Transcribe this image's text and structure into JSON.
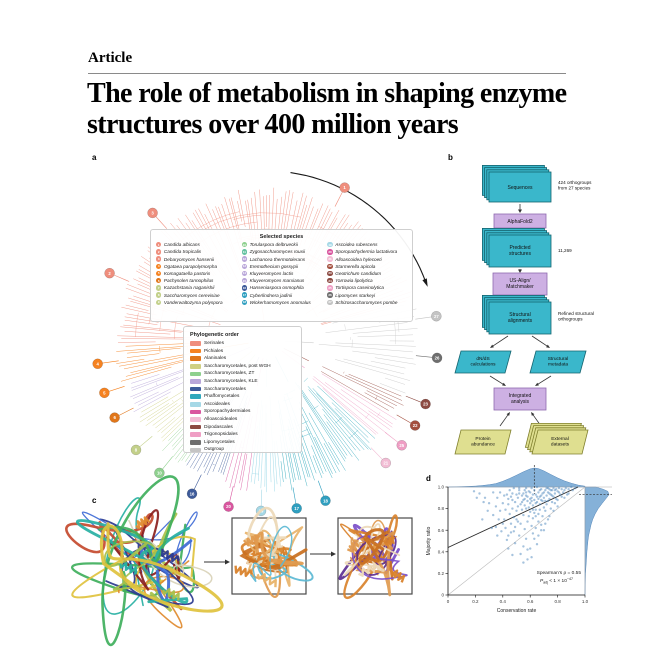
{
  "article": {
    "kicker": "Article",
    "title": "The role of metabolism in shaping enzyme structures over 400 million years"
  },
  "figure": {
    "panels": {
      "a": "a",
      "b": "b",
      "c": "c",
      "d": "d"
    }
  },
  "selected_species": {
    "title": "Selected species",
    "items": [
      {
        "num": "1",
        "name": "Candida albicans",
        "color": "#ef8e7d"
      },
      {
        "num": "2",
        "name": "Candida tropicalis",
        "color": "#ef8e7d"
      },
      {
        "num": "3",
        "name": "Debaryomyces hansenii",
        "color": "#ef8e7d"
      },
      {
        "num": "4",
        "name": "Ogataea parapolymorpha",
        "color": "#f58220"
      },
      {
        "num": "5",
        "name": "Komagataella pastoris",
        "color": "#f58220"
      },
      {
        "num": "6",
        "name": "Pachysolen tannophilus",
        "color": "#e0761a"
      },
      {
        "num": "7",
        "name": "Kazachstania naganishii",
        "color": "#c3d08a"
      },
      {
        "num": "8",
        "name": "Saccharomyces cerevisiae",
        "color": "#c3d08a"
      },
      {
        "num": "9",
        "name": "Vanderwaltozyma polyspora",
        "color": "#c3d08a"
      },
      {
        "num": "10",
        "name": "Torulaspora delbrueckii",
        "color": "#8ed08e"
      },
      {
        "num": "11",
        "name": "Zygosaccharomyces rouxii",
        "color": "#63c1a0"
      },
      {
        "num": "12",
        "name": "Lachancea thermotolerans",
        "color": "#b9a6d9"
      },
      {
        "num": "13",
        "name": "Eremothecium gossypii",
        "color": "#b9a6d9"
      },
      {
        "num": "14",
        "name": "Kluyveromyces lactis",
        "color": "#b9a6d9"
      },
      {
        "num": "15",
        "name": "Kluyveromyces marxianus",
        "color": "#b9a6d9"
      },
      {
        "num": "16",
        "name": "Hanseniaspora osmophila",
        "color": "#3d5a99"
      },
      {
        "num": "17",
        "name": "Cyberlindnera jadinii",
        "color": "#2f9fc0"
      },
      {
        "num": "18",
        "name": "Wickerhamomyces anomalus",
        "color": "#2f9fc0"
      },
      {
        "num": "19",
        "name": "Ascoidea rubescens",
        "color": "#a5d8e6"
      },
      {
        "num": "20",
        "name": "Sporopachydermia lactativora",
        "color": "#d9569f"
      },
      {
        "num": "21",
        "name": "Alloascoidea hylecoeti",
        "color": "#f2bcd4"
      },
      {
        "num": "22",
        "name": "Starmerella apicola",
        "color": "#a34f3e"
      },
      {
        "num": "23",
        "name": "Geotrichum candidum",
        "color": "#8c4a42"
      },
      {
        "num": "24",
        "name": "Yarrowia lipolytica",
        "color": "#8c4a42"
      },
      {
        "num": "25",
        "name": "Tortispora caseinolytica",
        "color": "#ef9ec4"
      },
      {
        "num": "26",
        "name": "Lipomyces starkeyi",
        "color": "#6e6e6e"
      },
      {
        "num": "27",
        "name": "Schizosaccharomyces pombe",
        "color": "#c4c4c4"
      }
    ]
  },
  "phylo_orders": {
    "title": "Phylogenetic order",
    "items": [
      {
        "label": "Serinales",
        "color": "#ef8e7d"
      },
      {
        "label": "Pichiales",
        "color": "#f58220"
      },
      {
        "label": "Alaninales",
        "color": "#e0761a"
      },
      {
        "label": "Saccharomycetales, post WGH",
        "color": "#cfd083"
      },
      {
        "label": "Saccharomycetales, ZT",
        "color": "#8ed08e"
      },
      {
        "label": "Saccharomycetales, KLE",
        "color": "#b9a6d9"
      },
      {
        "label": "Saccharomycetales",
        "color": "#3d5a99"
      },
      {
        "label": "Phaffomycetales",
        "color": "#2fa8bc"
      },
      {
        "label": "Ascoideales",
        "color": "#a5d8e6"
      },
      {
        "label": "Sporopachydermiales",
        "color": "#d9569f"
      },
      {
        "label": "Alloascoideales",
        "color": "#f2bcd4"
      },
      {
        "label": "Dipodascales",
        "color": "#8c4a42"
      },
      {
        "label": "Trigonopsidales",
        "color": "#ef9ec4"
      },
      {
        "label": "Lipomycetales",
        "color": "#6e6e6e"
      },
      {
        "label": "Outgroup",
        "color": "#c4c4c4"
      }
    ]
  },
  "tree": {
    "sectors": [
      {
        "start": 268,
        "end": 435,
        "color": "#ef8e7d",
        "n": 110
      },
      {
        "start": 75,
        "end": 112,
        "color": "#c9c9c9",
        "n": 16
      },
      {
        "start": 112,
        "end": 121,
        "color": "#9c544a",
        "n": 6
      },
      {
        "start": 121,
        "end": 132,
        "color": "#ef9ec4",
        "n": 7
      },
      {
        "start": 132,
        "end": 174,
        "color": "#2fa8bc",
        "n": 34
      },
      {
        "start": 174,
        "end": 187,
        "color": "#8fd4e4",
        "n": 10
      },
      {
        "start": 187,
        "end": 197,
        "color": "#d9569f",
        "n": 6
      },
      {
        "start": 197,
        "end": 213,
        "color": "#4a66a0",
        "n": 11
      },
      {
        "start": 213,
        "end": 225,
        "color": "#8ed08e",
        "n": 9
      },
      {
        "start": 225,
        "end": 241,
        "color": "#cfd083",
        "n": 11
      },
      {
        "start": 241,
        "end": 253,
        "color": "#b9a6d9",
        "n": 8
      },
      {
        "start": 253,
        "end": 268,
        "color": "#f58220",
        "n": 10
      }
    ],
    "tips": [
      {
        "num": "1",
        "angle": 27,
        "color": "#ef8e7d"
      },
      {
        "num": "2",
        "angle": 293,
        "color": "#ef8e7d"
      },
      {
        "num": "3",
        "angle": 318,
        "color": "#ef8e7d"
      },
      {
        "num": "4",
        "angle": 262,
        "color": "#f58220"
      },
      {
        "num": "5",
        "angle": 252,
        "color": "#f58220"
      },
      {
        "num": "6",
        "angle": 243,
        "color": "#e0761a"
      },
      {
        "num": "8",
        "angle": 230,
        "color": "#c3d08a"
      },
      {
        "num": "10",
        "angle": 219,
        "color": "#8ed08e"
      },
      {
        "num": "16",
        "angle": 206,
        "color": "#3d5a99"
      },
      {
        "num": "20",
        "angle": 193,
        "color": "#d9569f"
      },
      {
        "num": "19",
        "angle": 182,
        "color": "#a5d8e6"
      },
      {
        "num": "17",
        "angle": 170,
        "color": "#2f9fc0"
      },
      {
        "num": "18",
        "angle": 160,
        "color": "#2f9fc0"
      },
      {
        "num": "21",
        "angle": 136,
        "color": "#f2bcd4"
      },
      {
        "num": "25",
        "angle": 128,
        "color": "#ef9ec4"
      },
      {
        "num": "22",
        "angle": 120,
        "color": "#a34f3e"
      },
      {
        "num": "23",
        "angle": 112,
        "color": "#8c4a42"
      },
      {
        "num": "26",
        "angle": 96,
        "color": "#6e6e6e"
      },
      {
        "num": "27",
        "angle": 82,
        "color": "#c4c4c4"
      }
    ]
  },
  "workflow": {
    "sequences": "Sequences",
    "sequences_note": "424 orthogroups\nfrom 27 species",
    "alphafold": "AlphaFold2",
    "predicted": "Predicted\nstructures",
    "predicted_note": "11,269",
    "usalign": "US-Align/\nMatchmaker",
    "alignments": "Structural\nalignments",
    "alignments_note": "Refined structural\northogroups",
    "dnds": "dN/dS\ncalculations",
    "metadata": "Structural\nmetadata",
    "integrated": "Integrated\nanalysis",
    "abundance": "Protein\nabundance",
    "external": "External\ndatasets",
    "colors": {
      "teal": "#3ab7cb",
      "teal_stroke": "#14646f",
      "purple": "#cdb0e3",
      "purple_stroke": "#8e6ab0",
      "yellow": "#dfdf90",
      "yellow_stroke": "#80802e",
      "arrow": "#333333"
    }
  },
  "proteins": {
    "left_palette": [
      "#2b3a8f",
      "#3f6bd6",
      "#27b0a3",
      "#3faf5c",
      "#a8c04a",
      "#e0c23e",
      "#e08a2e",
      "#c44a2e",
      "#8a1f1f",
      "#d9d2b8"
    ],
    "mid_palette": [
      "#d9822b",
      "#c96f1e",
      "#e8b36a",
      "#edd9b8",
      "#e09a4f",
      "#5bb8d4"
    ],
    "right_palette": [
      "#d9822b",
      "#5b2d91",
      "#e09a4f",
      "#7b4fc9",
      "#edd9b8",
      "#c96f1e"
    ]
  },
  "chart_data": {
    "type": "scatter",
    "title": "",
    "xlabel": "Conservation rate",
    "ylabel": "Majority ratio",
    "xlim": [
      0,
      1
    ],
    "ylim": [
      0,
      1
    ],
    "xtick_labels": [
      "0",
      "0.2",
      "0.4",
      "0.6",
      "0.8",
      "1.0"
    ],
    "ytick_labels": [
      "0",
      "0.2",
      "0.4",
      "0.6",
      "0.8",
      "1.0"
    ],
    "grid": false,
    "legend_position": "none",
    "point_color": "#4d88bd",
    "density_fill": "#7fadd6",
    "density_stroke": "#4a7fb5",
    "annotation": {
      "spearman": "Spearman’s ρ = 0.55",
      "p_italic": "P",
      "p_sub": "adj",
      "p_rest": " < 1 × 10",
      "p_exp": "−47"
    },
    "regression": {
      "x0": 0,
      "y0": 0.44,
      "x1": 0.949,
      "y1": 1.0
    },
    "identity_line": true,
    "dashed_x": 0.63,
    "dashed_y": 0.93,
    "points": [
      [
        0.42,
        0.62
      ],
      [
        0.45,
        0.75
      ],
      [
        0.47,
        0.88
      ],
      [
        0.48,
        0.59
      ],
      [
        0.5,
        0.93
      ],
      [
        0.5,
        0.7
      ],
      [
        0.51,
        0.82
      ],
      [
        0.52,
        0.97
      ],
      [
        0.53,
        0.66
      ],
      [
        0.54,
        0.86
      ],
      [
        0.55,
        0.94
      ],
      [
        0.55,
        0.74
      ],
      [
        0.56,
        0.89
      ],
      [
        0.57,
        0.99
      ],
      [
        0.57,
        0.8
      ],
      [
        0.58,
        0.91
      ],
      [
        0.58,
        0.68
      ],
      [
        0.59,
        0.96
      ],
      [
        0.6,
        0.85
      ],
      [
        0.6,
        0.77
      ],
      [
        0.61,
        0.99
      ],
      [
        0.61,
        0.9
      ],
      [
        0.62,
        0.83
      ],
      [
        0.62,
        0.71
      ],
      [
        0.63,
        0.97
      ],
      [
        0.63,
        0.88
      ],
      [
        0.64,
        0.93
      ],
      [
        0.64,
        0.79
      ],
      [
        0.65,
        1.0
      ],
      [
        0.65,
        0.86
      ],
      [
        0.66,
        0.95
      ],
      [
        0.66,
        0.75
      ],
      [
        0.67,
        0.91
      ],
      [
        0.67,
        0.84
      ],
      [
        0.68,
        0.98
      ],
      [
        0.68,
        0.88
      ],
      [
        0.69,
        0.94
      ],
      [
        0.7,
        0.9
      ],
      [
        0.7,
        0.81
      ],
      [
        0.71,
        0.97
      ],
      [
        0.71,
        0.87
      ],
      [
        0.72,
        0.99
      ],
      [
        0.72,
        0.92
      ],
      [
        0.73,
        0.95
      ],
      [
        0.74,
        0.89
      ],
      [
        0.74,
        0.98
      ],
      [
        0.75,
        0.93
      ],
      [
        0.76,
        0.97
      ],
      [
        0.76,
        0.86
      ],
      [
        0.77,
        0.99
      ],
      [
        0.78,
        0.94
      ],
      [
        0.79,
        0.98
      ],
      [
        0.8,
        0.96
      ],
      [
        0.81,
        0.99
      ],
      [
        0.82,
        0.93
      ],
      [
        0.83,
        0.98
      ],
      [
        0.85,
        0.97
      ],
      [
        0.86,
        0.99
      ],
      [
        0.88,
        0.98
      ],
      [
        0.9,
        1.0
      ],
      [
        0.38,
        0.78
      ],
      [
        0.4,
        0.85
      ],
      [
        0.41,
        0.7
      ],
      [
        0.43,
        0.93
      ],
      [
        0.44,
        0.55
      ],
      [
        0.46,
        0.66
      ],
      [
        0.49,
        0.48
      ],
      [
        0.52,
        0.55
      ],
      [
        0.55,
        0.45
      ],
      [
        0.57,
        0.52
      ],
      [
        0.6,
        0.43
      ],
      [
        0.62,
        0.57
      ],
      [
        0.64,
        0.62
      ],
      [
        0.66,
        0.55
      ],
      [
        0.68,
        0.65
      ],
      [
        0.53,
        0.38
      ],
      [
        0.58,
        0.33
      ],
      [
        0.65,
        0.47
      ],
      [
        0.7,
        0.6
      ],
      [
        0.73,
        0.7
      ],
      [
        0.45,
        0.97
      ],
      [
        0.47,
        0.8
      ],
      [
        0.35,
        0.82
      ],
      [
        0.36,
        0.9
      ],
      [
        0.33,
        0.74
      ],
      [
        0.3,
        0.85
      ],
      [
        0.56,
        0.61
      ],
      [
        0.59,
        0.73
      ],
      [
        0.61,
        0.64
      ],
      [
        0.69,
        0.73
      ],
      [
        0.75,
        0.8
      ],
      [
        0.78,
        0.85
      ],
      [
        0.8,
        0.88
      ],
      [
        0.46,
        0.91
      ],
      [
        0.44,
        0.84
      ],
      [
        0.42,
        0.79
      ],
      [
        0.4,
        0.66
      ],
      [
        0.37,
        0.7
      ],
      [
        0.51,
        0.9
      ],
      [
        0.49,
        0.86
      ],
      [
        0.48,
        0.72
      ],
      [
        0.54,
        0.79
      ],
      [
        0.63,
        0.76
      ],
      [
        0.67,
        0.79
      ],
      [
        0.71,
        0.78
      ],
      [
        0.23,
        0.94
      ],
      [
        0.27,
        0.9
      ],
      [
        0.6,
        0.95
      ],
      [
        0.56,
        0.97
      ],
      [
        0.52,
        0.94
      ],
      [
        0.66,
        0.89
      ],
      [
        0.73,
        0.87
      ],
      [
        0.77,
        0.91
      ],
      [
        0.84,
        0.95
      ],
      [
        0.87,
        0.93
      ],
      [
        0.91,
        0.97
      ],
      [
        0.93,
        0.99
      ],
      [
        0.62,
        0.93
      ],
      [
        0.58,
        0.87
      ],
      [
        0.64,
        0.85
      ],
      [
        0.68,
        0.92
      ],
      [
        0.57,
        0.92
      ],
      [
        0.53,
        0.84
      ],
      [
        0.5,
        0.78
      ],
      [
        0.47,
        0.94
      ],
      [
        0.55,
        0.88
      ],
      [
        0.59,
        0.81
      ],
      [
        0.61,
        0.87
      ],
      [
        0.65,
        0.91
      ],
      [
        0.69,
        0.87
      ],
      [
        0.72,
        0.84
      ],
      [
        0.74,
        0.94
      ],
      [
        0.76,
        0.92
      ],
      [
        0.79,
        0.89
      ],
      [
        0.81,
        0.95
      ],
      [
        0.83,
        0.91
      ],
      [
        0.49,
        0.63
      ],
      [
        0.51,
        0.68
      ],
      [
        0.46,
        0.58
      ],
      [
        0.43,
        0.51
      ],
      [
        0.39,
        0.59
      ],
      [
        0.35,
        0.63
      ],
      [
        0.54,
        0.92
      ],
      [
        0.56,
        0.83
      ],
      [
        0.44,
        0.89
      ],
      [
        0.41,
        0.92
      ],
      [
        0.38,
        0.95
      ],
      [
        0.48,
        0.99
      ],
      [
        0.52,
        0.99
      ],
      [
        0.57,
        0.95
      ],
      [
        0.33,
        0.95
      ],
      [
        0.29,
        0.78
      ],
      [
        0.26,
        0.86
      ],
      [
        0.21,
        0.9
      ],
      [
        0.19,
        0.96
      ],
      [
        0.67,
        0.97
      ],
      [
        0.7,
        0.95
      ],
      [
        0.73,
        0.99
      ],
      [
        0.75,
        0.97
      ],
      [
        0.78,
        0.97
      ],
      [
        0.85,
        0.9
      ],
      [
        0.88,
        0.94
      ],
      [
        0.6,
        0.89
      ],
      [
        0.62,
        0.79
      ],
      [
        0.64,
        0.73
      ],
      [
        0.66,
        0.68
      ],
      [
        0.68,
        0.6
      ],
      [
        0.71,
        0.66
      ],
      [
        0.74,
        0.73
      ],
      [
        0.77,
        0.78
      ],
      [
        0.8,
        0.82
      ],
      [
        0.44,
        0.43
      ],
      [
        0.47,
        0.37
      ],
      [
        0.55,
        0.3
      ],
      [
        0.61,
        0.35
      ],
      [
        0.58,
        0.42
      ],
      [
        0.63,
        0.52
      ],
      [
        0.36,
        0.55
      ],
      [
        0.32,
        0.62
      ],
      [
        0.25,
        0.7
      ]
    ],
    "top_density": [
      [
        0,
        0
      ],
      [
        0.05,
        0.01
      ],
      [
        0.1,
        0.02
      ],
      [
        0.15,
        0.03
      ],
      [
        0.2,
        0.05
      ],
      [
        0.25,
        0.08
      ],
      [
        0.3,
        0.12
      ],
      [
        0.35,
        0.18
      ],
      [
        0.4,
        0.3
      ],
      [
        0.45,
        0.45
      ],
      [
        0.5,
        0.62
      ],
      [
        0.55,
        0.8
      ],
      [
        0.6,
        0.95
      ],
      [
        0.63,
        1.0
      ],
      [
        0.66,
        0.97
      ],
      [
        0.7,
        0.85
      ],
      [
        0.75,
        0.66
      ],
      [
        0.8,
        0.48
      ],
      [
        0.85,
        0.32
      ],
      [
        0.9,
        0.2
      ],
      [
        0.95,
        0.1
      ],
      [
        1.0,
        0.04
      ]
    ],
    "right_density": [
      [
        0,
        0
      ],
      [
        0.2,
        0.02
      ],
      [
        0.3,
        0.05
      ],
      [
        0.4,
        0.08
      ],
      [
        0.5,
        0.12
      ],
      [
        0.55,
        0.15
      ],
      [
        0.6,
        0.2
      ],
      [
        0.65,
        0.25
      ],
      [
        0.7,
        0.32
      ],
      [
        0.75,
        0.42
      ],
      [
        0.8,
        0.55
      ],
      [
        0.85,
        0.72
      ],
      [
        0.9,
        0.9
      ],
      [
        0.93,
        1.0
      ],
      [
        0.96,
        0.95
      ],
      [
        0.98,
        0.75
      ],
      [
        1.0,
        0.45
      ]
    ]
  }
}
